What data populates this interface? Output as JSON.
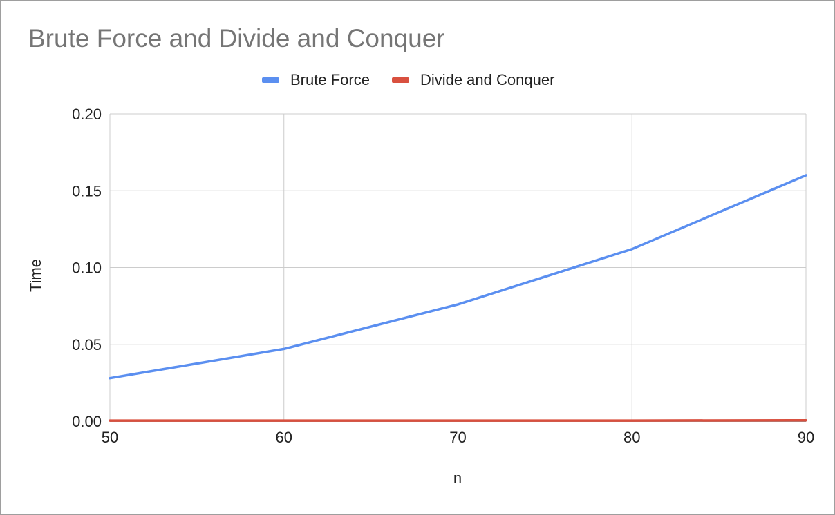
{
  "chart_data": {
    "type": "line",
    "title": "Brute Force and Divide and Conquer",
    "xlabel": "n",
    "ylabel": "Time",
    "x": [
      50,
      60,
      70,
      80,
      90
    ],
    "x_ticks": [
      "50",
      "60",
      "70",
      "80",
      "90"
    ],
    "y_ticks": [
      "0.00",
      "0.05",
      "0.10",
      "0.15",
      "0.20"
    ],
    "xlim": [
      50,
      90
    ],
    "ylim": [
      0,
      0.2
    ],
    "grid": true,
    "legend_position": "top",
    "series": [
      {
        "name": "Brute Force",
        "color": "#5b8ff0",
        "values": [
          0.028,
          0.047,
          0.076,
          0.112,
          0.16
        ]
      },
      {
        "name": "Divide and Conquer",
        "color": "#d9503f",
        "values": [
          0.0004,
          0.0004,
          0.0004,
          0.0004,
          0.0006
        ]
      }
    ]
  }
}
